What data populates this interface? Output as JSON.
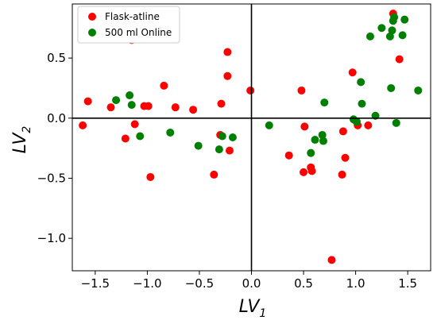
{
  "chart_data": {
    "type": "scatter",
    "xlabel": "LV",
    "xlabel_sub": "1",
    "ylabel": "LV",
    "ylabel_sub": "2",
    "xlim": [
      -1.72,
      1.72
    ],
    "ylim": [
      -1.27,
      0.95
    ],
    "xticks": [
      -1.5,
      -1.0,
      -0.5,
      0.0,
      0.5,
      1.0,
      1.5
    ],
    "xtick_labels": [
      "−1.5",
      "−1.0",
      "−0.5",
      "0.0",
      "0.5",
      "1.0",
      "1.5"
    ],
    "yticks": [
      -1.0,
      -0.5,
      0.0,
      0.5
    ],
    "ytick_labels": [
      "−1.0",
      "−0.5",
      "0.0",
      "0.5"
    ],
    "zero_lines": true,
    "legend_position": "top-left",
    "series": [
      {
        "name": "Flask-atline",
        "color": "#ff0000",
        "points": [
          [
            -1.62,
            -0.06
          ],
          [
            -1.57,
            0.14
          ],
          [
            -1.35,
            0.09
          ],
          [
            -1.21,
            -0.17
          ],
          [
            -1.15,
            0.65
          ],
          [
            -1.12,
            -0.05
          ],
          [
            -1.03,
            0.1
          ],
          [
            -0.99,
            0.1
          ],
          [
            -0.97,
            -0.49
          ],
          [
            -0.84,
            0.27
          ],
          [
            -0.73,
            0.09
          ],
          [
            -0.56,
            0.07
          ],
          [
            -0.36,
            -0.47
          ],
          [
            -0.3,
            -0.14
          ],
          [
            -0.29,
            0.12
          ],
          [
            -0.23,
            0.55
          ],
          [
            -0.23,
            0.35
          ],
          [
            -0.21,
            -0.27
          ],
          [
            -0.01,
            0.23
          ],
          [
            0.36,
            -0.31
          ],
          [
            0.48,
            0.23
          ],
          [
            0.5,
            -0.45
          ],
          [
            0.51,
            -0.07
          ],
          [
            0.57,
            -0.41
          ],
          [
            0.58,
            -0.44
          ],
          [
            0.77,
            -1.18
          ],
          [
            0.87,
            -0.47
          ],
          [
            0.88,
            -0.11
          ],
          [
            0.9,
            -0.33
          ],
          [
            0.97,
            0.38
          ],
          [
            1.02,
            -0.06
          ],
          [
            1.12,
            -0.06
          ],
          [
            1.36,
            0.87
          ],
          [
            1.42,
            0.49
          ]
        ]
      },
      {
        "name": "500 ml Online",
        "color": "#008000",
        "points": [
          [
            -1.3,
            0.15
          ],
          [
            -1.17,
            0.19
          ],
          [
            -1.15,
            0.11
          ],
          [
            -1.07,
            -0.15
          ],
          [
            -0.78,
            -0.12
          ],
          [
            -0.51,
            -0.23
          ],
          [
            -0.31,
            -0.26
          ],
          [
            -0.28,
            -0.15
          ],
          [
            -0.18,
            -0.16
          ],
          [
            0.17,
            -0.06
          ],
          [
            0.57,
            -0.29
          ],
          [
            0.61,
            -0.18
          ],
          [
            0.68,
            -0.14
          ],
          [
            0.69,
            -0.19
          ],
          [
            0.7,
            0.13
          ],
          [
            0.98,
            -0.01
          ],
          [
            1.01,
            -0.03
          ],
          [
            1.05,
            0.3
          ],
          [
            1.06,
            0.12
          ],
          [
            1.14,
            0.68
          ],
          [
            1.19,
            0.02
          ],
          [
            1.25,
            0.75
          ],
          [
            1.33,
            0.68
          ],
          [
            1.34,
            0.25
          ],
          [
            1.35,
            0.73
          ],
          [
            1.36,
            0.81
          ],
          [
            1.37,
            0.84
          ],
          [
            1.39,
            -0.04
          ],
          [
            1.45,
            0.69
          ],
          [
            1.47,
            0.82
          ],
          [
            1.6,
            0.23
          ]
        ]
      }
    ]
  }
}
